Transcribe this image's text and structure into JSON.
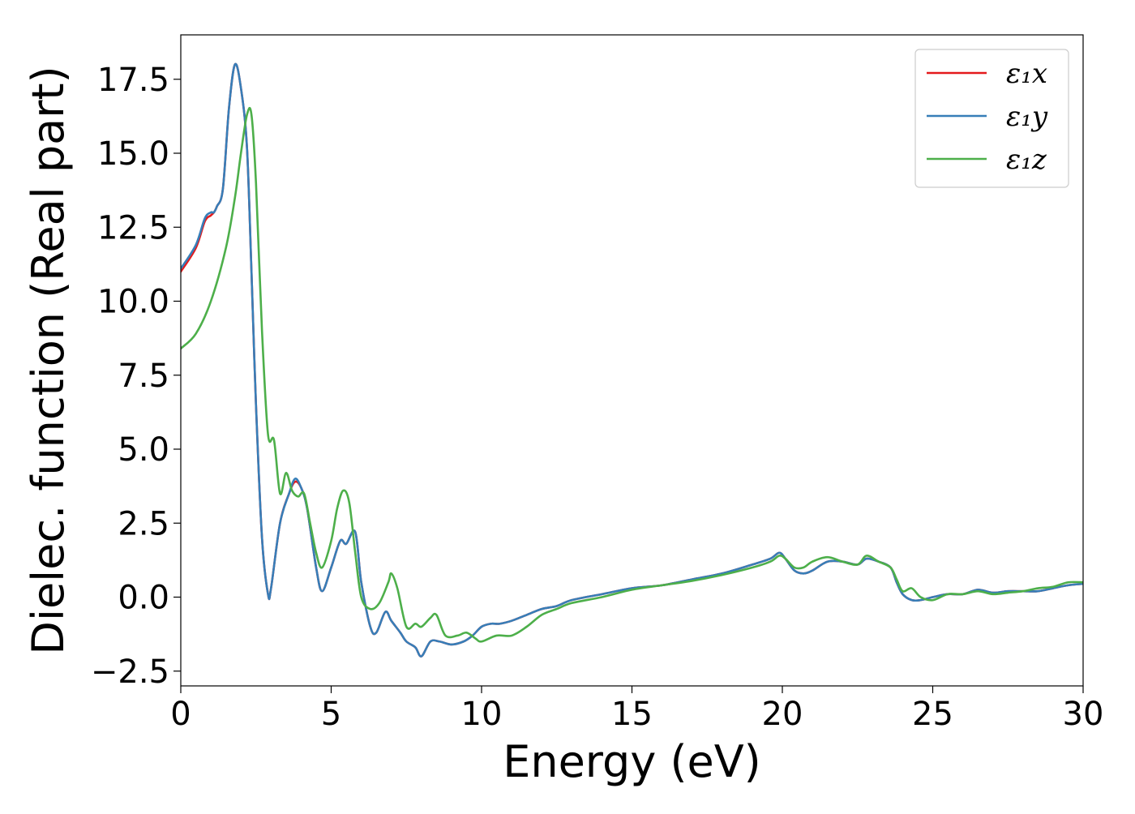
{
  "chart_data": {
    "type": "line",
    "title": "",
    "xlabel": "Energy (eV)",
    "ylabel": "Dielec. function (Real part)",
    "xlim": [
      0,
      30
    ],
    "ylim": [
      -3.0,
      19.0
    ],
    "xticks": [
      0,
      5,
      10,
      15,
      20,
      25,
      30
    ],
    "xtick_labels": [
      "0",
      "5",
      "10",
      "15",
      "20",
      "25",
      "30"
    ],
    "yticks": [
      -2.5,
      0.0,
      2.5,
      5.0,
      7.5,
      10.0,
      12.5,
      15.0,
      17.5
    ],
    "ytick_labels": [
      "−2.5",
      "0.0",
      "2.5",
      "5.0",
      "7.5",
      "10.0",
      "12.5",
      "15.0",
      "17.5"
    ],
    "grid": false,
    "legend_position": "top-right",
    "series": [
      {
        "name": "ε₁x",
        "color": "#e41a1c",
        "x": [
          0,
          0.5,
          0.8,
          1.0,
          1.1,
          1.2,
          1.4,
          1.6,
          1.8,
          2.0,
          2.2,
          2.35,
          2.5,
          2.7,
          2.9,
          3.0,
          3.3,
          3.6,
          3.8,
          4.0,
          4.2,
          4.5,
          4.7,
          5.0,
          5.3,
          5.5,
          5.8,
          6.0,
          6.3,
          6.5,
          6.8,
          7.0,
          7.3,
          7.5,
          7.8,
          8.0,
          8.3,
          8.6,
          9.0,
          9.4,
          9.7,
          10.0,
          10.3,
          10.6,
          11.0,
          11.5,
          12.0,
          12.5,
          13.0,
          14.0,
          15.0,
          16.0,
          17.0,
          18.0,
          19.0,
          19.6,
          19.9,
          20.1,
          20.4,
          20.7,
          21.0,
          21.5,
          22.0,
          22.5,
          22.8,
          23.2,
          23.6,
          23.8,
          24.0,
          24.3,
          24.6,
          25.0,
          25.5,
          26.0,
          26.5,
          27.0,
          27.5,
          28.0,
          28.5,
          29.0,
          29.5,
          30.0
        ],
        "y": [
          11.0,
          11.8,
          12.7,
          12.9,
          13.0,
          13.2,
          13.8,
          16.5,
          18.0,
          17.2,
          15.2,
          11.0,
          6.5,
          2.0,
          0.1,
          0.3,
          2.5,
          3.5,
          3.9,
          3.7,
          3.0,
          1.0,
          0.2,
          1.0,
          1.9,
          1.8,
          2.2,
          0.5,
          -1.0,
          -1.2,
          -0.5,
          -0.8,
          -1.2,
          -1.5,
          -1.7,
          -2.0,
          -1.5,
          -1.5,
          -1.6,
          -1.5,
          -1.3,
          -1.0,
          -0.9,
          -0.9,
          -0.8,
          -0.6,
          -0.4,
          -0.3,
          -0.1,
          0.1,
          0.3,
          0.4,
          0.6,
          0.8,
          1.1,
          1.3,
          1.5,
          1.3,
          0.9,
          0.8,
          0.9,
          1.2,
          1.2,
          1.1,
          1.3,
          1.2,
          1.0,
          0.5,
          0.1,
          -0.1,
          -0.1,
          0.0,
          0.1,
          0.1,
          0.25,
          0.15,
          0.2,
          0.2,
          0.2,
          0.3,
          0.4,
          0.45
        ]
      },
      {
        "name": "ε₁y",
        "color": "#377eb8",
        "x": [
          0,
          0.5,
          0.8,
          1.0,
          1.1,
          1.2,
          1.4,
          1.6,
          1.8,
          2.0,
          2.2,
          2.35,
          2.5,
          2.7,
          2.9,
          3.0,
          3.3,
          3.6,
          3.8,
          4.0,
          4.2,
          4.5,
          4.7,
          5.0,
          5.3,
          5.5,
          5.8,
          6.0,
          6.3,
          6.5,
          6.8,
          7.0,
          7.3,
          7.5,
          7.8,
          8.0,
          8.3,
          8.6,
          9.0,
          9.4,
          9.7,
          10.0,
          10.3,
          10.6,
          11.0,
          11.5,
          12.0,
          12.5,
          13.0,
          14.0,
          15.0,
          16.0,
          17.0,
          18.0,
          19.0,
          19.6,
          19.9,
          20.1,
          20.4,
          20.7,
          21.0,
          21.5,
          22.0,
          22.5,
          22.8,
          23.2,
          23.6,
          23.8,
          24.0,
          24.3,
          24.6,
          25.0,
          25.5,
          26.0,
          26.5,
          27.0,
          27.5,
          28.0,
          28.5,
          29.0,
          29.5,
          30.0
        ],
        "y": [
          11.1,
          11.9,
          12.8,
          13.0,
          13.0,
          13.2,
          13.8,
          16.5,
          18.0,
          17.2,
          15.2,
          11.0,
          6.5,
          2.0,
          0.1,
          0.3,
          2.5,
          3.5,
          4.0,
          3.7,
          3.0,
          1.0,
          0.2,
          1.0,
          1.9,
          1.8,
          2.2,
          0.5,
          -1.0,
          -1.2,
          -0.5,
          -0.8,
          -1.2,
          -1.5,
          -1.7,
          -2.0,
          -1.5,
          -1.5,
          -1.6,
          -1.5,
          -1.3,
          -1.0,
          -0.9,
          -0.9,
          -0.8,
          -0.6,
          -0.4,
          -0.3,
          -0.1,
          0.1,
          0.3,
          0.4,
          0.6,
          0.8,
          1.1,
          1.3,
          1.5,
          1.3,
          0.9,
          0.8,
          0.9,
          1.2,
          1.2,
          1.1,
          1.3,
          1.2,
          1.0,
          0.5,
          0.1,
          -0.1,
          -0.1,
          0.0,
          0.1,
          0.1,
          0.25,
          0.15,
          0.2,
          0.2,
          0.2,
          0.3,
          0.4,
          0.45
        ]
      },
      {
        "name": "ε₁z",
        "color": "#4daf4a",
        "x": [
          0,
          0.5,
          1.0,
          1.5,
          1.8,
          2.0,
          2.2,
          2.35,
          2.5,
          2.7,
          2.9,
          3.1,
          3.3,
          3.5,
          3.7,
          3.9,
          4.1,
          4.3,
          4.5,
          4.7,
          5.0,
          5.2,
          5.4,
          5.6,
          5.8,
          6.0,
          6.3,
          6.6,
          6.9,
          7.0,
          7.2,
          7.5,
          7.8,
          8.0,
          8.3,
          8.5,
          8.8,
          9.2,
          9.5,
          9.8,
          10.0,
          10.5,
          11.0,
          11.5,
          12.0,
          12.5,
          13.0,
          14.0,
          15.0,
          16.0,
          17.0,
          18.0,
          19.0,
          19.6,
          19.9,
          20.1,
          20.4,
          20.7,
          21.0,
          21.5,
          22.0,
          22.5,
          22.8,
          23.2,
          23.6,
          23.8,
          24.0,
          24.3,
          24.6,
          25.0,
          25.5,
          26.0,
          26.5,
          27.0,
          27.5,
          28.0,
          28.5,
          29.0,
          29.5,
          30.0
        ],
        "y": [
          8.4,
          8.9,
          10.0,
          11.8,
          13.5,
          15.0,
          16.3,
          16.3,
          14.0,
          9.0,
          5.5,
          5.3,
          3.5,
          4.2,
          3.6,
          3.4,
          3.5,
          2.5,
          1.5,
          1.0,
          1.9,
          3.0,
          3.6,
          3.2,
          1.5,
          0.0,
          -0.4,
          -0.2,
          0.5,
          0.8,
          0.3,
          -1.0,
          -0.9,
          -1.0,
          -0.7,
          -0.6,
          -1.3,
          -1.3,
          -1.2,
          -1.4,
          -1.5,
          -1.3,
          -1.3,
          -1.0,
          -0.6,
          -0.4,
          -0.2,
          0.0,
          0.25,
          0.4,
          0.55,
          0.75,
          1.0,
          1.2,
          1.4,
          1.3,
          1.0,
          1.0,
          1.2,
          1.35,
          1.2,
          1.1,
          1.4,
          1.2,
          1.0,
          0.6,
          0.2,
          0.3,
          0.0,
          -0.1,
          0.1,
          0.1,
          0.2,
          0.1,
          0.15,
          0.2,
          0.3,
          0.35,
          0.5,
          0.5
        ]
      }
    ]
  }
}
